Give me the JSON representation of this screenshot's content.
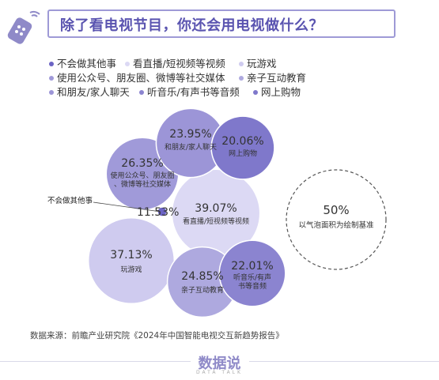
{
  "header": {
    "title": "除了看电视节目，你还会用电视做什么？"
  },
  "source": "数据来源：前瞻产业研究院《2024年中国智能电视交互新趋势报告》",
  "brand": {
    "name": "数据说",
    "sub": "DATA TALK"
  },
  "reference": {
    "value_label": "50%",
    "label": "以气泡面积为绘制基准"
  },
  "chart_data": {
    "type": "bubble",
    "title": "除了看电视节目，你还会用电视做什么？",
    "unit": "%",
    "series": [
      {
        "name": "不会做其他事",
        "value": 11.53,
        "value_label": "11.53%",
        "label": "不会做其他事",
        "color": "#6b63c4"
      },
      {
        "name": "看直播/短视频等视频",
        "value": 39.07,
        "value_label": "39.07%",
        "label": "看直播/短视频等视频",
        "color": "#dcd9f4"
      },
      {
        "name": "玩游戏",
        "value": 37.13,
        "value_label": "37.13%",
        "label": "玩游戏",
        "color": "#cfcbef"
      },
      {
        "name": "使用公众号、朋友圈、微博等社交媒体",
        "value": 26.35,
        "value_label": "26.35%",
        "label": "使用公众号、朋友圈、微博等社交媒体",
        "color": "#a09ad9"
      },
      {
        "name": "亲子互动教育",
        "value": 24.85,
        "value_label": "24.85%",
        "label": "亲子互动教育",
        "color": "#aea9df"
      },
      {
        "name": "和朋友/家人聊天",
        "value": 23.95,
        "value_label": "23.95%",
        "label": "和朋友/家人聊天",
        "color": "#9c95d7"
      },
      {
        "name": "听音乐/有声书等音频",
        "value": 22.01,
        "value_label": "22.01%",
        "label": "听音乐/有声书等音频",
        "color": "#8b84d0"
      },
      {
        "name": "网上购物",
        "value": 20.06,
        "value_label": "20.06%",
        "label": "网上购物",
        "color": "#7f78cb"
      }
    ],
    "legend": [
      {
        "label": "不会做其他事",
        "color": "#6b63c4"
      },
      {
        "label": "看直播/短视频等视频",
        "color": "#dcd9f4"
      },
      {
        "label": "玩游戏",
        "color": "#cfcbef"
      },
      {
        "label": "使用公众号、朋友圈、微博等社交媒体",
        "color": "#a09ad9"
      },
      {
        "label": "亲子互动教育",
        "color": "#aea9df"
      },
      {
        "label": "和朋友/家人聊天",
        "color": "#9c95d7"
      },
      {
        "label": "听音乐/有声书等音频",
        "color": "#8b84d0"
      },
      {
        "label": "网上购物",
        "color": "#7f78cb"
      }
    ],
    "reference_value": 50
  }
}
